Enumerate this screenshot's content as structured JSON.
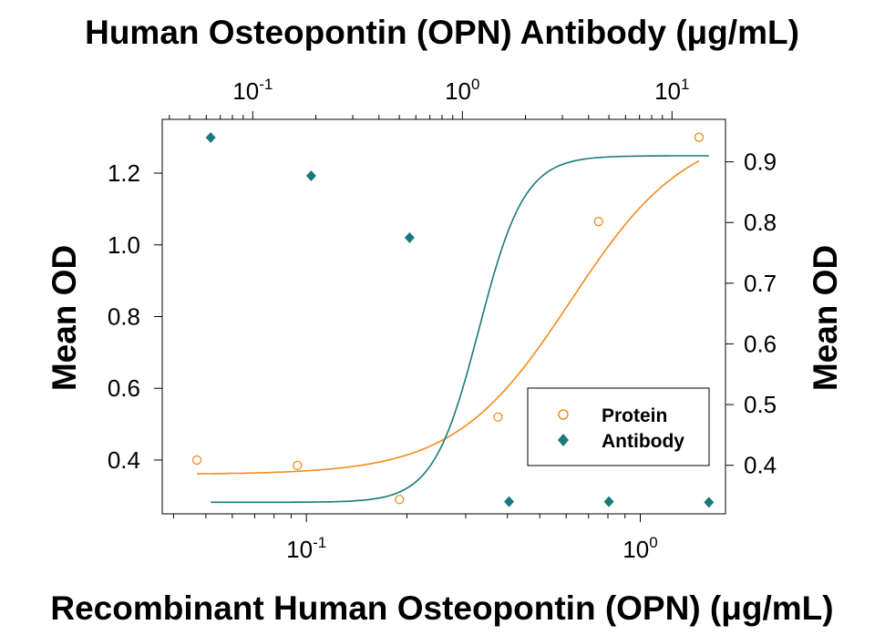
{
  "chart_data": {
    "type": "scatter",
    "title": "Human Osteopontin (OPN) Antibody (μg/mL)",
    "xlabel": "Recombinant Human Osteopontin (OPN) (μg/mL)",
    "ylabel_left": "Mean OD",
    "ylabel_right": "Mean OD",
    "x_bottom": {
      "scale": "log",
      "range": [
        0.037,
        1.8
      ],
      "ticks": [
        0.1,
        1
      ],
      "tick_labels": [
        {
          "base": "10",
          "exp": "-1"
        },
        {
          "base": "10",
          "exp": "0"
        }
      ]
    },
    "x_top": {
      "scale": "log",
      "range": [
        0.037,
        18
      ],
      "ticks": [
        0.1,
        1,
        10
      ],
      "tick_labels": [
        {
          "base": "10",
          "exp": "-1"
        },
        {
          "base": "10",
          "exp": "0"
        },
        {
          "base": "10",
          "exp": "1"
        }
      ]
    },
    "y_left": {
      "range": [
        0.25,
        1.35
      ],
      "ticks": [
        0.4,
        0.6,
        0.8,
        1.0,
        1.2
      ],
      "tick_labels": [
        "0.4",
        "0.6",
        "0.8",
        "1.0",
        "1.2"
      ]
    },
    "y_right": {
      "range": [
        0.32,
        0.97
      ],
      "ticks": [
        0.4,
        0.5,
        0.6,
        0.7,
        0.8,
        0.9
      ],
      "tick_labels": [
        "0.4",
        "0.5",
        "0.6",
        "0.7",
        "0.8",
        "0.9"
      ]
    },
    "legend_position": "bottom-right",
    "series": [
      {
        "name": "Protein",
        "marker": "open-circle",
        "color": "#f08c1e",
        "axis": "bottom-left",
        "x": [
          0.047,
          0.094,
          0.19,
          0.375,
          0.75,
          1.5
        ],
        "y": [
          0.4,
          0.385,
          0.29,
          0.52,
          1.065,
          1.3
        ],
        "fit": {
          "bottom": 0.36,
          "top": 1.33,
          "ec50": 0.62,
          "hill": 2.5
        }
      },
      {
        "name": "Antibody",
        "marker": "filled-diamond",
        "color": "#1a7a78",
        "axis": "top-right",
        "x": [
          0.063,
          0.19,
          0.56,
          1.67,
          5.0,
          15.0
        ],
        "y": [
          0.94,
          0.877,
          0.775,
          0.34,
          0.34,
          0.339
        ],
        "fit": {
          "bottom": 0.339,
          "top": 0.91,
          "ec50": 1.2,
          "hill": 4.0
        }
      }
    ]
  }
}
